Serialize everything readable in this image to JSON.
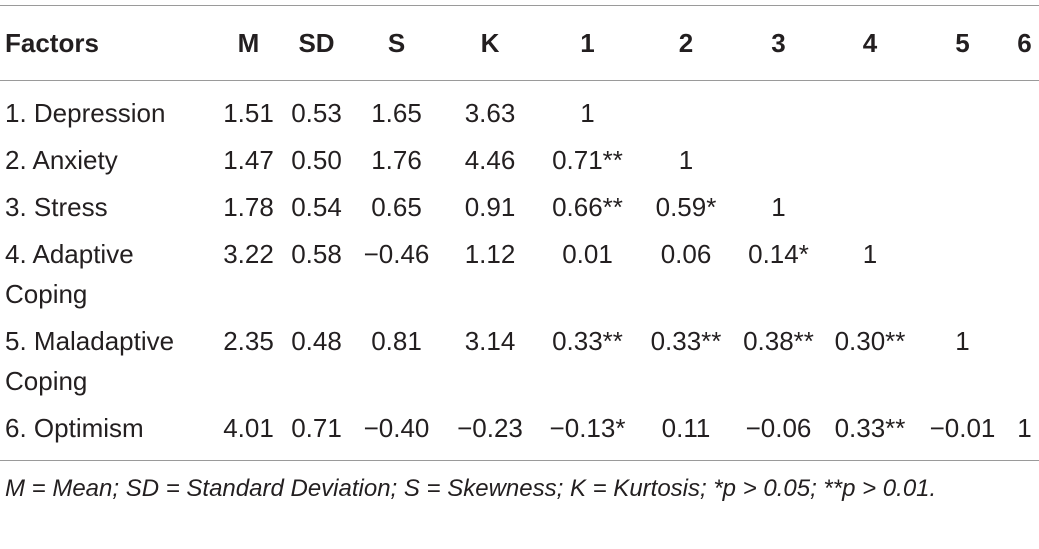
{
  "table": {
    "header": [
      "Factors",
      "M",
      "SD",
      "S",
      "K",
      "1",
      "2",
      "3",
      "4",
      "5",
      "6"
    ],
    "rows": [
      [
        "1. Depression",
        "1.51",
        "0.53",
        "1.65",
        "3.63",
        "1"
      ],
      [
        "2. Anxiety",
        "1.47",
        "0.50",
        "1.76",
        "4.46",
        "0.71**",
        "1"
      ],
      [
        "3. Stress",
        "1.78",
        "0.54",
        "0.65",
        "0.91",
        "0.66**",
        "0.59*",
        "1"
      ],
      [
        "4. Adaptive Coping",
        "3.22",
        "0.58",
        "−0.46",
        "1.12",
        "0.01",
        "0.06",
        "0.14*",
        "1"
      ],
      [
        "5. Maladaptive Coping",
        "2.35",
        "0.48",
        "0.81",
        "3.14",
        "0.33**",
        "0.33**",
        "0.38**",
        "0.30**",
        "1"
      ],
      [
        "6. Optimism",
        "4.01",
        "0.71",
        "−0.40",
        "−0.23",
        "−0.13*",
        "0.11",
        "−0.06",
        "0.33**",
        "−0.01",
        "1"
      ]
    ],
    "footnote": "M = Mean; SD = Standard Deviation; S = Skewness; K = Kurtosis; *p > 0.05; **p > 0.01."
  }
}
